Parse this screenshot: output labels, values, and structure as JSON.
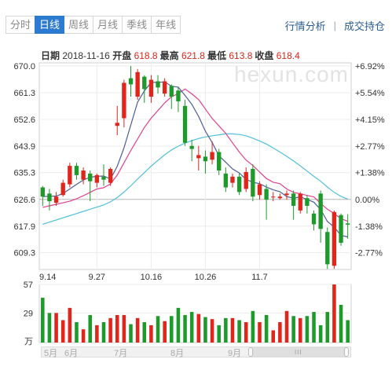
{
  "tabs": [
    "分时",
    "日线",
    "周线",
    "月线",
    "季线",
    "年线"
  ],
  "active_tab": 1,
  "links": {
    "analysis": "行情分析",
    "holdings": "成交持仓"
  },
  "info": {
    "date_label": "日期",
    "date": "2018-11-16",
    "open_label": "开盘",
    "open": "618.8",
    "high_label": "最高",
    "high": "621.8",
    "low_label": "最低",
    "low": "613.8",
    "close_label": "收盘",
    "close": "618.4"
  },
  "watermark": "hexun.com",
  "volume_unit": "万",
  "scroller_labels": [
    "5月",
    "6月",
    "7月",
    "8月",
    "9月"
  ],
  "colors": {
    "up": "#e0251b",
    "down": "#1e9a2b",
    "ma5": "#4d5d9a",
    "ma10": "#e0408e",
    "ma20": "#52c0d8",
    "base": "#c8c8c8"
  },
  "chart_data": {
    "type": "candlestick",
    "price_axis": {
      "ticks": [
        670.0,
        661.3,
        652.6,
        643.9,
        635.3,
        626.6,
        617.9,
        609.3
      ],
      "ylim": [
        603.8,
        671.0
      ],
      "base": 626.6
    },
    "pct_axis": [
      "+6.92%",
      "+5.54%",
      "+4.15%",
      "+2.77%",
      "+1.38%",
      "0.00%",
      "-1.38%",
      "-2.77%"
    ],
    "x_labels": [
      {
        "label": "9.14",
        "index": 0
      },
      {
        "label": "9.27",
        "index": 8
      },
      {
        "label": "10.16",
        "index": 16
      },
      {
        "label": "10.26",
        "index": 24
      },
      {
        "label": "11.7",
        "index": 32
      }
    ],
    "candles": [
      [
        630.5,
        627.5,
        631.0,
        624.5
      ],
      [
        628.5,
        626.0,
        630.0,
        623.0
      ],
      [
        625.5,
        627.5,
        629.0,
        624.5
      ],
      [
        628.0,
        632.0,
        633.0,
        627.5
      ],
      [
        631.5,
        637.5,
        638.5,
        630.5
      ],
      [
        637.5,
        634.5,
        638.5,
        633.0
      ],
      [
        633.0,
        636.0,
        637.0,
        631.5
      ],
      [
        635.0,
        632.5,
        636.0,
        626.0
      ],
      [
        632.0,
        634.5,
        635.0,
        630.5
      ],
      [
        634.0,
        633.0,
        638.0,
        631.0
      ],
      [
        632.0,
        636.5,
        637.0,
        631.0
      ],
      [
        650.5,
        651.5,
        657.0,
        647.5
      ],
      [
        653.0,
        664.5,
        665.5,
        650.0
      ],
      [
        666.0,
        664.0,
        670.0,
        660.0
      ],
      [
        660.0,
        668.0,
        669.0,
        659.0
      ],
      [
        666.5,
        662.5,
        667.0,
        658.0
      ],
      [
        660.0,
        665.5,
        667.0,
        658.0
      ],
      [
        665.0,
        663.0,
        667.0,
        661.0
      ],
      [
        661.0,
        665.0,
        666.0,
        660.0
      ],
      [
        663.5,
        660.0,
        664.0,
        656.0
      ],
      [
        662.0,
        658.5,
        663.0,
        655.0
      ],
      [
        657.0,
        645.0,
        659.0,
        644.0
      ],
      [
        644.0,
        643.0,
        646.0,
        639.0
      ],
      [
        640.0,
        641.0,
        644.0,
        636.0
      ],
      [
        640.5,
        639.0,
        642.5,
        635.0
      ],
      [
        639.5,
        642.0,
        645.5,
        638.0
      ],
      [
        642.0,
        636.0,
        643.0,
        634.5
      ],
      [
        635.0,
        630.5,
        637.0,
        629.0
      ],
      [
        632.0,
        634.0,
        635.0,
        630.5
      ],
      [
        634.0,
        629.0,
        635.0,
        628.0
      ],
      [
        630.0,
        635.5,
        637.0,
        629.0
      ],
      [
        636.5,
        627.5,
        638.0,
        626.0
      ],
      [
        628.0,
        631.5,
        632.5,
        626.5
      ],
      [
        630.0,
        626.5,
        631.5,
        620.0
      ],
      [
        627.5,
        627.5,
        629.0,
        626.0
      ],
      [
        627.0,
        627.5,
        628.5,
        626.5
      ],
      [
        628.0,
        628.5,
        629.5,
        626.5
      ],
      [
        628.5,
        624.5,
        629.5,
        620.0
      ],
      [
        623.0,
        628.5,
        629.0,
        622.0
      ],
      [
        627.0,
        624.5,
        628.0,
        622.0
      ],
      [
        622.0,
        618.5,
        623.0,
        616.5
      ],
      [
        628.5,
        617.0,
        629.5,
        612.5
      ],
      [
        616.0,
        605.5,
        617.5,
        604.0
      ],
      [
        605.0,
        622.5,
        623.0,
        604.0
      ],
      [
        621.5,
        612.5,
        622.0,
        611.5
      ],
      [
        618.8,
        618.4,
        621.8,
        613.8
      ]
    ],
    "ma5": [
      627.5,
      627.6,
      627.7,
      628.5,
      630.0,
      631.5,
      632.9,
      633.8,
      634.1,
      634.2,
      633.2,
      637.4,
      643.4,
      650.8,
      658.2,
      661.9,
      664.6,
      664.7,
      664.8,
      663.4,
      663.1,
      660.4,
      657.5,
      653.6,
      648.8,
      645.1,
      640.8,
      638.7,
      636.5,
      635.2,
      633.1,
      632.2,
      631.7,
      630.6,
      629.7,
      629.1,
      627.5,
      627.0,
      627.4,
      626.6,
      625.7,
      623.3,
      619.4,
      617.6,
      614.9,
      614.4
    ],
    "ma10": [
      624.0,
      624.5,
      625.0,
      625.5,
      626.0,
      626.8,
      627.8,
      628.9,
      630.0,
      630.4,
      631.6,
      634.5,
      638.5,
      642.5,
      646.2,
      650.0,
      653.0,
      655.5,
      658.0,
      660.0,
      661.0,
      662.5,
      660.9,
      659.1,
      656.0,
      652.9,
      650.5,
      648.1,
      645.0,
      642.0,
      639.4,
      637.6,
      635.5,
      633.4,
      632.2,
      631.7,
      630.0,
      628.9,
      628.4,
      627.9,
      627.4,
      625.3,
      623.4,
      622.0,
      620.3,
      619.5
    ],
    "ma20": [
      618.5,
      619.2,
      619.9,
      620.6,
      621.3,
      622.0,
      622.7,
      623.4,
      624.1,
      624.8,
      625.8,
      627.2,
      629.0,
      631.0,
      633.2,
      635.3,
      637.4,
      639.3,
      641.1,
      642.7,
      643.9,
      644.9,
      645.7,
      646.4,
      646.9,
      647.3,
      647.6,
      647.9,
      647.9,
      647.7,
      647.3,
      646.5,
      645.6,
      644.6,
      643.3,
      642.0,
      640.6,
      639.1,
      637.5,
      635.8,
      634.1,
      632.5,
      630.6,
      628.9,
      627.6,
      626.7
    ]
  },
  "volume_data": {
    "ticks": [
      57,
      29
    ],
    "ymax": 57,
    "values": [
      44,
      29,
      29,
      22,
      34,
      20,
      13,
      27,
      17,
      20,
      24,
      27,
      27,
      18,
      24,
      20,
      17,
      26,
      21,
      26,
      34,
      27,
      30,
      28,
      25,
      23,
      17,
      24,
      24,
      22,
      20,
      31,
      20,
      27,
      12,
      20,
      31,
      26,
      24,
      26,
      30,
      17,
      30,
      57,
      37,
      22
    ]
  }
}
